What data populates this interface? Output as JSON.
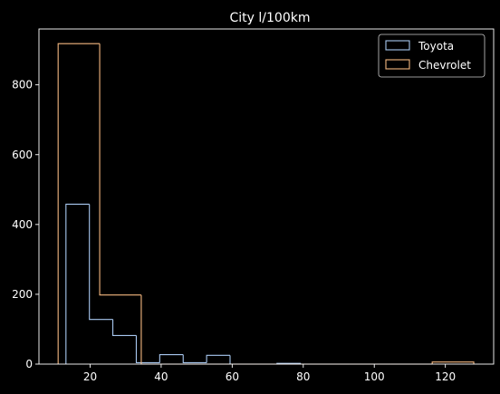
{
  "chart_data": {
    "type": "histogram-step",
    "title": "City l/100km",
    "xlabel": "",
    "ylabel": "",
    "xlim": [
      5.6,
      133.6
    ],
    "ylim": [
      0,
      960
    ],
    "xticks": [
      20,
      40,
      60,
      80,
      100,
      120
    ],
    "yticks": [
      0,
      200,
      400,
      600,
      800
    ],
    "legend_position": "top-right",
    "grid": false,
    "series": [
      {
        "name": "Toyota",
        "color": "#a8c8f0",
        "bin_edges": [
          13.2,
          19.8,
          26.4,
          33.0,
          39.6,
          46.2,
          52.8,
          59.4,
          66.0,
          72.6,
          79.2
        ],
        "values": [
          458,
          128,
          82,
          4,
          27,
          4,
          25,
          0,
          0,
          2
        ]
      },
      {
        "name": "Chevrolet",
        "color": "#f5b880",
        "bin_edges": [
          11.0,
          22.7,
          34.4,
          46.1,
          57.8,
          69.5,
          81.2,
          92.9,
          104.6,
          116.3,
          128.0
        ],
        "values": [
          918,
          198,
          0,
          0,
          0,
          0,
          0,
          0,
          0,
          6
        ]
      }
    ]
  }
}
